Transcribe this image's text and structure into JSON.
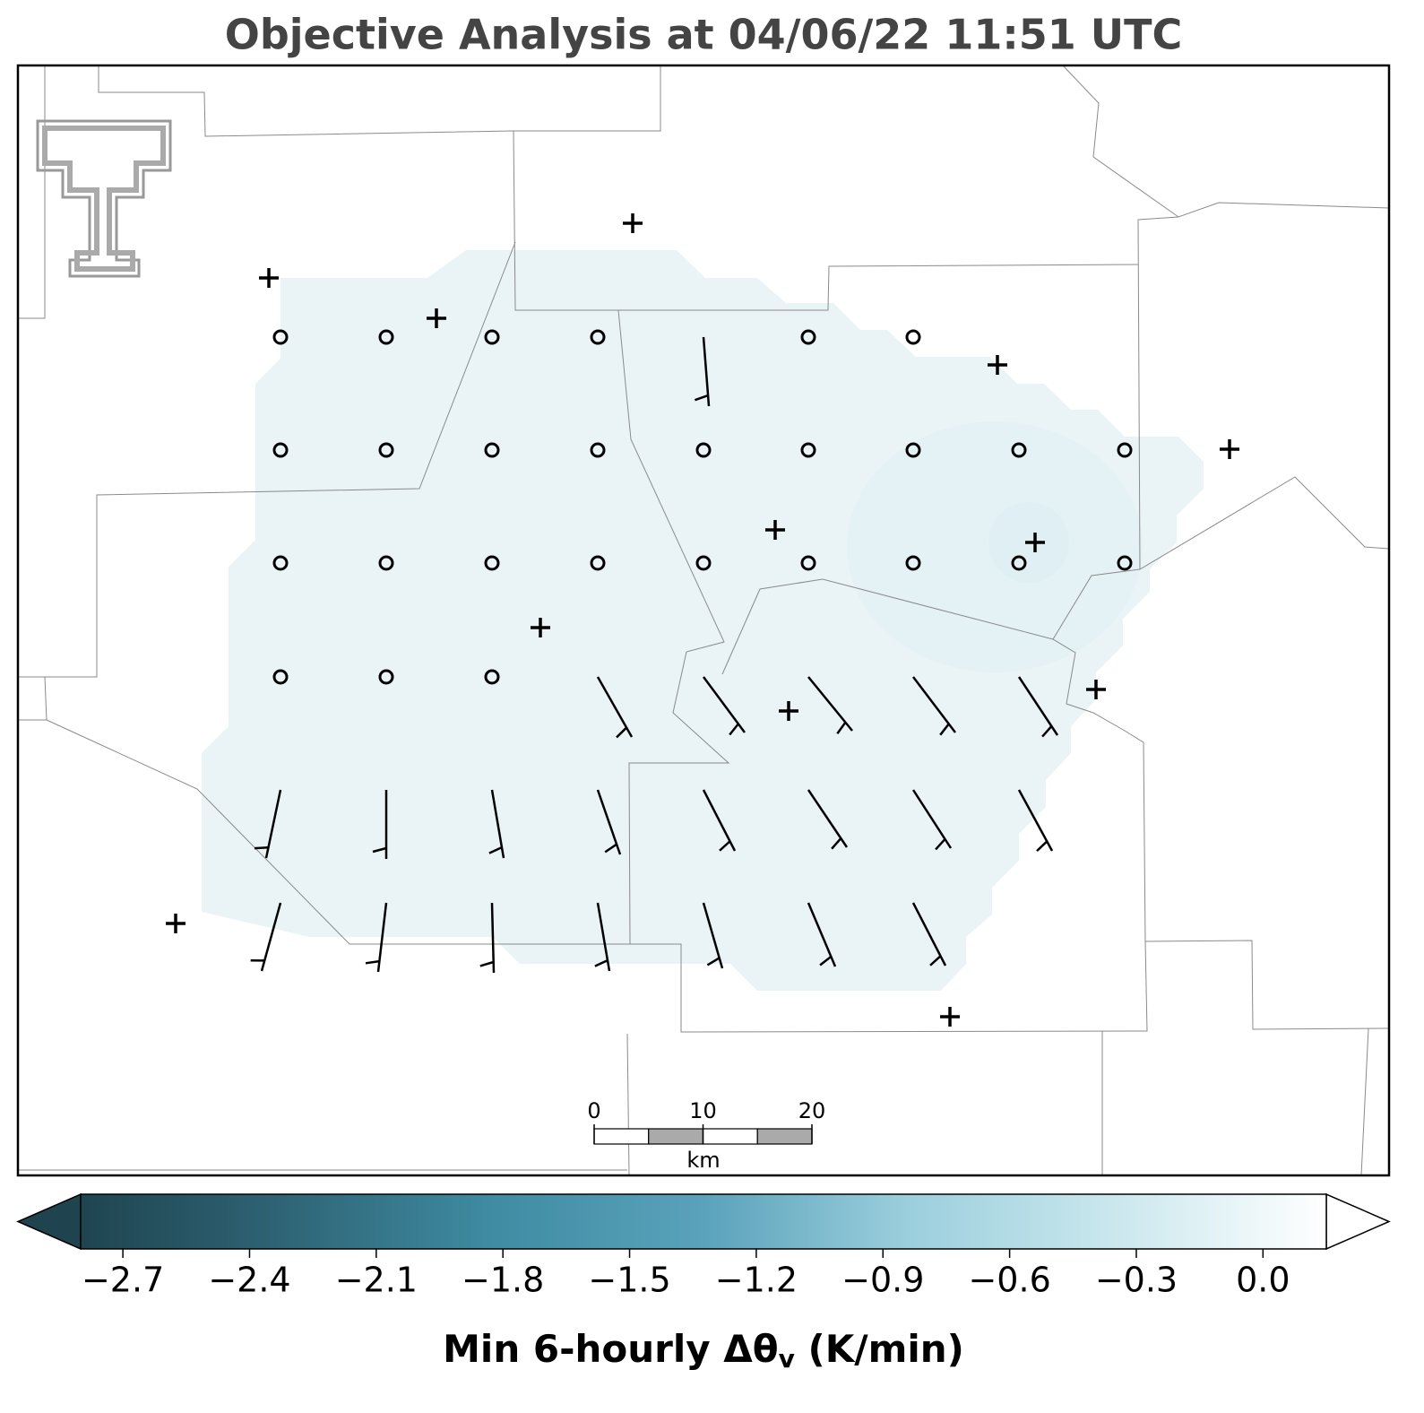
{
  "title": "Objective Analysis at 04/06/22 11:51 UTC",
  "colorbar": {
    "label": {
      "main": "Min 6-hourly Δθ",
      "subscript": "v",
      "unit": "(K/min)"
    },
    "range": [
      -2.8,
      0.15
    ],
    "colors": [
      "#1f4450",
      "#2f6577",
      "#3f8ca3",
      "#5aa2bb",
      "#9ccfdd",
      "#cbe8ee",
      "#ffffff"
    ],
    "ticks": [
      {
        "value": -2.7,
        "label": "−2.7"
      },
      {
        "value": -2.4,
        "label": "−2.4"
      },
      {
        "value": -2.1,
        "label": "−2.1"
      },
      {
        "value": -1.8,
        "label": "−1.8"
      },
      {
        "value": -1.5,
        "label": "−1.5"
      },
      {
        "value": -1.2,
        "label": "−1.2"
      },
      {
        "value": -0.9,
        "label": "−0.9"
      },
      {
        "value": -0.6,
        "label": "−0.6"
      },
      {
        "value": -0.3,
        "label": "−0.3"
      },
      {
        "value": 0,
        "label": "0.0"
      }
    ]
  },
  "scale_bar": {
    "ticks": [
      0,
      10,
      20
    ],
    "unit": "km"
  }
}
